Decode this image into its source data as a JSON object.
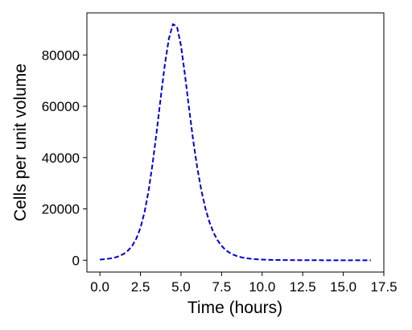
{
  "chart_data": {
    "type": "line",
    "title": "",
    "xlabel": "Time (hours)",
    "ylabel": "Cells per unit volume",
    "xlim": [
      -0.8,
      17.5
    ],
    "ylim": [
      -4600,
      96400
    ],
    "xticks": [
      0.0,
      2.5,
      5.0,
      7.5,
      10.0,
      12.5,
      15.0,
      17.5
    ],
    "xtick_labels": [
      "0.0",
      "2.5",
      "5.0",
      "7.5",
      "10.0",
      "12.5",
      "15.0",
      "17.5"
    ],
    "yticks": [
      0,
      20000,
      40000,
      60000,
      80000
    ],
    "ytick_labels": [
      "0",
      "20000",
      "40000",
      "60000",
      "80000"
    ],
    "grid": false,
    "legend": "none",
    "series": [
      {
        "color": "#0000cc",
        "line_style": "dashed",
        "x": [
          0,
          0.25,
          0.5,
          0.75,
          1.0,
          1.25,
          1.5,
          1.75,
          2.0,
          2.25,
          2.5,
          2.75,
          3.0,
          3.25,
          3.5,
          3.75,
          4.0,
          4.25,
          4.5,
          4.75,
          5.0,
          5.25,
          5.5,
          5.75,
          6.0,
          6.25,
          6.5,
          6.75,
          7.0,
          7.25,
          7.5,
          7.75,
          8.0,
          8.25,
          8.5,
          8.75,
          9.0,
          9.25,
          9.5,
          9.75,
          10.0,
          10.5,
          11.0,
          11.5,
          12.0,
          12.5,
          13.0,
          14.0,
          15.0,
          16.0,
          16.7
        ],
        "y": [
          250,
          380,
          560,
          820,
          1200,
          1760,
          2600,
          3850,
          5700,
          8500,
          12600,
          18700,
          27000,
          37700,
          50100,
          63400,
          76100,
          86300,
          92000,
          91100,
          83600,
          71900,
          59000,
          46700,
          36100,
          27300,
          20300,
          14900,
          10800,
          7800,
          5600,
          4000,
          2900,
          2100,
          1500,
          1100,
          800,
          600,
          450,
          340,
          260,
          160,
          100,
          65,
          40,
          25,
          15,
          6,
          3,
          1,
          0
        ]
      }
    ]
  }
}
